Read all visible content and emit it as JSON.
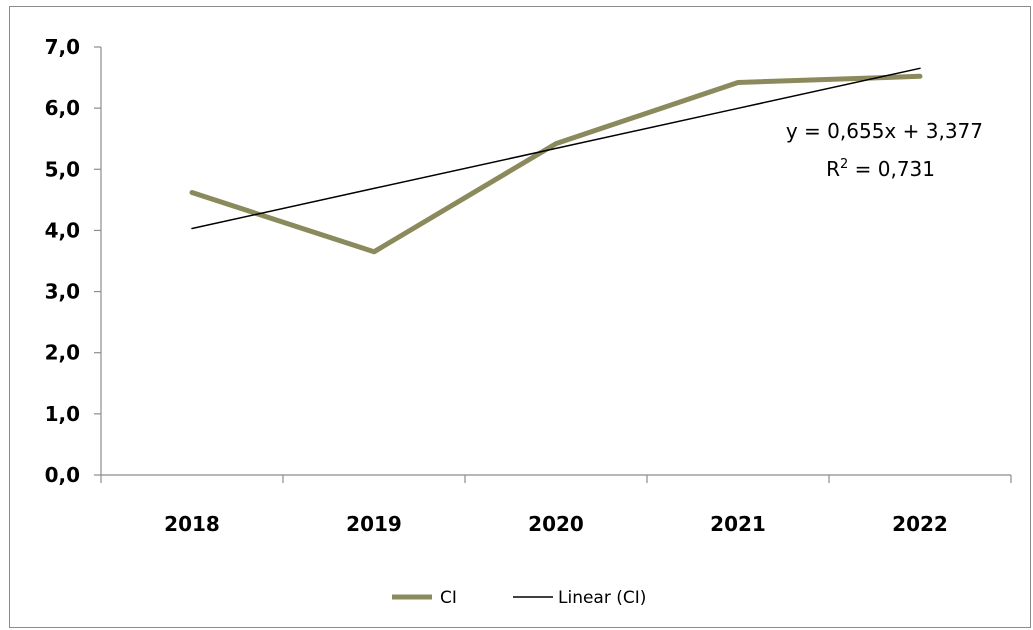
{
  "chart_data": {
    "type": "line",
    "categories": [
      "2018",
      "2019",
      "2020",
      "2021",
      "2022"
    ],
    "series": [
      {
        "name": "CI",
        "values": [
          4.62,
          3.65,
          5.42,
          6.42,
          6.52
        ],
        "color": "#8b8a5c"
      },
      {
        "name": "Linear (CI)",
        "values": [
          4.032,
          4.687,
          5.342,
          5.997,
          6.652
        ],
        "color": "#000000",
        "trendline": true
      }
    ],
    "y_ticks": [
      "0,0",
      "1,0",
      "2,0",
      "3,0",
      "4,0",
      "5,0",
      "6,0",
      "7,0"
    ],
    "ylim": [
      0,
      7
    ],
    "grid": false,
    "legend_position": "bottom",
    "annotations": {
      "equation": "y = 0,655x + 3,377",
      "r2_label": "R",
      "r2_sup": "2",
      "r2_value": " = 0,731"
    }
  }
}
